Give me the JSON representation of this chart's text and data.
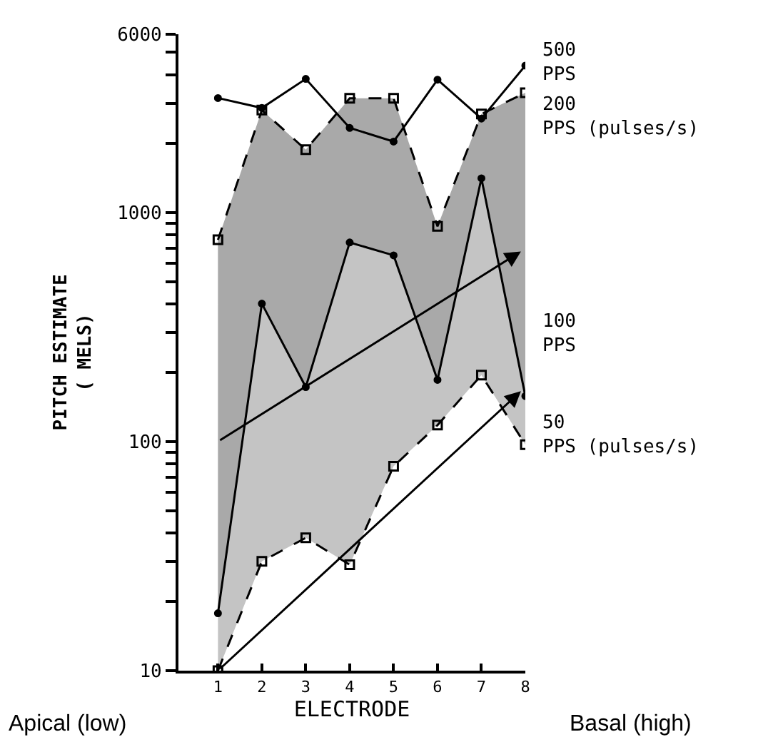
{
  "chart_data": {
    "type": "line",
    "xlabel": "ELECTRODE",
    "ylabel": "PITCH ESTIMATE\n( MELS)",
    "log": "y",
    "x": [
      1,
      2,
      3,
      4,
      5,
      6,
      7,
      8
    ],
    "xlim": [
      0.1,
      8
    ],
    "xticks": [
      1,
      2,
      3,
      4,
      5,
      6,
      7,
      8
    ],
    "ylim": [
      10,
      6000
    ],
    "yticks": [
      10,
      {
        "value": 20,
        "label": null
      },
      {
        "value": 30,
        "label": null
      },
      {
        "value": 40,
        "label": null
      },
      {
        "value": 50,
        "label": null
      },
      {
        "value": 60,
        "label": null
      },
      {
        "value": 70,
        "label": null
      },
      {
        "value": 80,
        "label": null
      },
      {
        "value": 90,
        "label": null
      },
      100,
      {
        "value": 200,
        "label": null
      },
      {
        "value": 300,
        "label": null
      },
      {
        "value": 400,
        "label": null
      },
      {
        "value": 500,
        "label": null
      },
      {
        "value": 600,
        "label": null
      },
      {
        "value": 700,
        "label": null
      },
      {
        "value": 800,
        "label": null
      },
      {
        "value": 900,
        "label": null
      },
      1000,
      {
        "value": 2000,
        "label": null
      },
      {
        "value": 3000,
        "label": null
      },
      {
        "value": 4000,
        "label": null
      },
      {
        "value": 5000,
        "label": null
      },
      6000
    ],
    "series": [
      {
        "name": "500\nPPS",
        "color": "#000000",
        "marker": "circle",
        "line_style": "solid",
        "values": [
          3160,
          2860,
          3830,
          2340,
          2040,
          3800,
          2570,
          4380
        ]
      },
      {
        "name": "200\nPPS (pulses/s)",
        "type": "area",
        "color": "#000000",
        "marker": "square",
        "line_style": "dashed",
        "values": [
          760,
          2800,
          1880,
          3150,
          3150,
          870,
          2690,
          3330
        ]
      },
      {
        "name": "100\nPPS",
        "type": "area",
        "color": "#000000",
        "marker": "circle",
        "line_style": "solid",
        "values": [
          17.8,
          400,
          173,
          740,
          650,
          186,
          1410,
          158
        ]
      },
      {
        "name": "50\nPPS (pulses/s)",
        "color": "#000000",
        "marker": "square",
        "line_style": "dashed",
        "values": [
          10,
          30,
          38,
          29,
          78,
          118,
          195,
          97
        ]
      }
    ],
    "annotations": [
      "Apical (low)",
      "Basal (high)"
    ]
  }
}
